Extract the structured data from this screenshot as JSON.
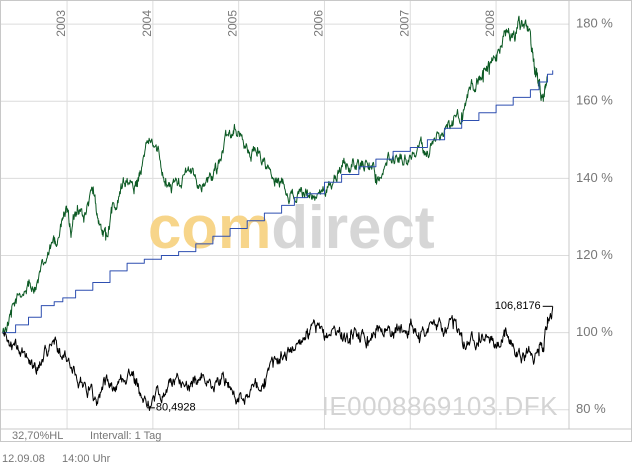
{
  "chart_data": {
    "type": "line",
    "y_axis": {
      "position": "right",
      "ticks": [
        "80 %",
        "100 %",
        "120 %",
        "140 %",
        "160 %",
        "180 %"
      ],
      "tick_values": [
        80,
        100,
        120,
        140,
        160,
        180
      ],
      "range": [
        75,
        186
      ]
    },
    "x_axis": {
      "year_labels": [
        "2003",
        "2004",
        "2005",
        "2006",
        "2007",
        "2008"
      ],
      "year_positions": [
        2003.0,
        2004.0,
        2005.0,
        2006.0,
        2007.0,
        2008.0
      ],
      "range": [
        2002.23,
        2008.85
      ]
    },
    "series": [
      {
        "name": "green",
        "color": "#0c5a24",
        "noisy": true,
        "points": [
          [
            2002.25,
            100
          ],
          [
            2002.35,
            104
          ],
          [
            2002.45,
            110
          ],
          [
            2002.55,
            112
          ],
          [
            2002.65,
            113
          ],
          [
            2002.75,
            118
          ],
          [
            2002.85,
            123
          ],
          [
            2002.92,
            127
          ],
          [
            2002.98,
            131
          ],
          [
            2003.05,
            126
          ],
          [
            2003.12,
            133
          ],
          [
            2003.2,
            130
          ],
          [
            2003.3,
            136
          ],
          [
            2003.38,
            128
          ],
          [
            2003.45,
            124
          ],
          [
            2003.52,
            131
          ],
          [
            2003.62,
            136
          ],
          [
            2003.7,
            140
          ],
          [
            2003.78,
            136
          ],
          [
            2003.85,
            142
          ],
          [
            2003.95,
            149
          ],
          [
            2004.05,
            147
          ],
          [
            2004.15,
            140
          ],
          [
            2004.22,
            137
          ],
          [
            2004.3,
            140
          ],
          [
            2004.4,
            142
          ],
          [
            2004.5,
            140
          ],
          [
            2004.6,
            138
          ],
          [
            2004.7,
            140
          ],
          [
            2004.78,
            145
          ],
          [
            2004.88,
            151
          ],
          [
            2004.95,
            154
          ],
          [
            2005.05,
            150
          ],
          [
            2005.15,
            146
          ],
          [
            2005.22,
            148
          ],
          [
            2005.32,
            143
          ],
          [
            2005.42,
            138
          ],
          [
            2005.52,
            139
          ],
          [
            2005.6,
            136
          ],
          [
            2005.7,
            136
          ],
          [
            2005.8,
            137
          ],
          [
            2005.9,
            135
          ],
          [
            2006.02,
            137
          ],
          [
            2006.12,
            140
          ],
          [
            2006.22,
            144
          ],
          [
            2006.32,
            143
          ],
          [
            2006.42,
            144
          ],
          [
            2006.52,
            144
          ],
          [
            2006.6,
            141
          ],
          [
            2006.7,
            143
          ],
          [
            2006.8,
            146
          ],
          [
            2006.9,
            145
          ],
          [
            2007.0,
            146
          ],
          [
            2007.1,
            148
          ],
          [
            2007.2,
            147
          ],
          [
            2007.3,
            150
          ],
          [
            2007.4,
            153
          ],
          [
            2007.5,
            154
          ],
          [
            2007.6,
            157
          ],
          [
            2007.7,
            163
          ],
          [
            2007.78,
            165
          ],
          [
            2007.85,
            165
          ],
          [
            2007.92,
            167
          ],
          [
            2008.0,
            172
          ],
          [
            2008.1,
            178
          ],
          [
            2008.18,
            177
          ],
          [
            2008.25,
            179
          ],
          [
            2008.32,
            180
          ],
          [
            2008.4,
            178
          ],
          [
            2008.45,
            167
          ],
          [
            2008.5,
            164
          ],
          [
            2008.55,
            160
          ],
          [
            2008.6,
            167
          ]
        ]
      },
      {
        "name": "blue",
        "color": "#2e4fb0",
        "noisy": false,
        "points": [
          [
            2002.25,
            100
          ],
          [
            2002.4,
            102
          ],
          [
            2002.55,
            104
          ],
          [
            2002.7,
            107
          ],
          [
            2002.85,
            108
          ],
          [
            2002.95,
            109
          ],
          [
            2003.1,
            111
          ],
          [
            2003.3,
            113
          ],
          [
            2003.5,
            116
          ],
          [
            2003.7,
            118
          ],
          [
            2003.9,
            119
          ],
          [
            2004.1,
            120
          ],
          [
            2004.3,
            121
          ],
          [
            2004.5,
            123
          ],
          [
            2004.7,
            125
          ],
          [
            2004.9,
            127
          ],
          [
            2005.1,
            129
          ],
          [
            2005.3,
            131
          ],
          [
            2005.5,
            133
          ],
          [
            2005.65,
            135
          ],
          [
            2005.8,
            136
          ],
          [
            2006.0,
            139
          ],
          [
            2006.2,
            141
          ],
          [
            2006.4,
            143
          ],
          [
            2006.6,
            145
          ],
          [
            2006.8,
            147
          ],
          [
            2007.0,
            148
          ],
          [
            2007.2,
            150
          ],
          [
            2007.4,
            153
          ],
          [
            2007.6,
            155
          ],
          [
            2007.8,
            157
          ],
          [
            2008.0,
            159
          ],
          [
            2008.2,
            161
          ],
          [
            2008.4,
            163
          ],
          [
            2008.5,
            165
          ],
          [
            2008.6,
            167
          ],
          [
            2008.66,
            168
          ]
        ]
      },
      {
        "name": "black",
        "color": "#000000",
        "noisy": true,
        "points": [
          [
            2002.25,
            100
          ],
          [
            2002.35,
            97
          ],
          [
            2002.45,
            95
          ],
          [
            2002.55,
            93
          ],
          [
            2002.65,
            91
          ],
          [
            2002.75,
            96
          ],
          [
            2002.85,
            97
          ],
          [
            2002.95,
            94
          ],
          [
            2003.05,
            91
          ],
          [
            2003.15,
            87
          ],
          [
            2003.25,
            86
          ],
          [
            2003.35,
            82
          ],
          [
            2003.45,
            88
          ],
          [
            2003.55,
            85
          ],
          [
            2003.65,
            88
          ],
          [
            2003.75,
            89
          ],
          [
            2003.82,
            86
          ],
          [
            2003.9,
            83
          ],
          [
            2003.98,
            81
          ],
          [
            2004.08,
            84
          ],
          [
            2004.2,
            87
          ],
          [
            2004.3,
            88
          ],
          [
            2004.42,
            86
          ],
          [
            2004.5,
            88
          ],
          [
            2004.58,
            89
          ],
          [
            2004.7,
            86
          ],
          [
            2004.8,
            88
          ],
          [
            2004.9,
            86
          ],
          [
            2005.0,
            82
          ],
          [
            2005.1,
            84
          ],
          [
            2005.2,
            87
          ],
          [
            2005.3,
            88
          ],
          [
            2005.4,
            91
          ],
          [
            2005.5,
            94
          ],
          [
            2005.6,
            95
          ],
          [
            2005.7,
            98
          ],
          [
            2005.8,
            101
          ],
          [
            2005.9,
            100
          ],
          [
            2006.0,
            98
          ],
          [
            2006.1,
            101
          ],
          [
            2006.2,
            100
          ],
          [
            2006.3,
            97
          ],
          [
            2006.4,
            100
          ],
          [
            2006.5,
            99
          ],
          [
            2006.6,
            101
          ],
          [
            2006.7,
            101
          ],
          [
            2006.8,
            100
          ],
          [
            2006.9,
            101
          ],
          [
            2007.0,
            102
          ],
          [
            2007.1,
            100
          ],
          [
            2007.2,
            101
          ],
          [
            2007.3,
            102
          ],
          [
            2007.4,
            100
          ],
          [
            2007.5,
            101
          ],
          [
            2007.6,
            100
          ],
          [
            2007.7,
            98
          ],
          [
            2007.8,
            100
          ],
          [
            2007.9,
            99
          ],
          [
            2008.0,
            96
          ],
          [
            2008.1,
            99
          ],
          [
            2008.2,
            97
          ],
          [
            2008.3,
            93
          ],
          [
            2008.4,
            95
          ],
          [
            2008.5,
            94
          ],
          [
            2008.55,
            96
          ],
          [
            2008.6,
            104
          ],
          [
            2008.66,
            106.8
          ]
        ]
      }
    ],
    "annotations": [
      {
        "text": "106,8176",
        "x": 2008.66,
        "y": 106.8176,
        "anchor": "end"
      },
      {
        "text": "80,4928",
        "x": 2004.0,
        "y": 80.4928,
        "anchor": "start"
      }
    ],
    "watermark": {
      "part1": "com",
      "part2": "direct",
      "color1": "#f7d58a",
      "color2": "#d6d6d6"
    },
    "isin": "IE0008869103.DFK",
    "colors": {
      "grid": "#dcdcdc",
      "frame": "#c8c8c8",
      "text": "#777777"
    }
  },
  "footer": {
    "hl": "32,70%HL",
    "interval": "Intervall: 1 Tag",
    "date": "12.09.08",
    "time": "14:00 Uhr"
  }
}
